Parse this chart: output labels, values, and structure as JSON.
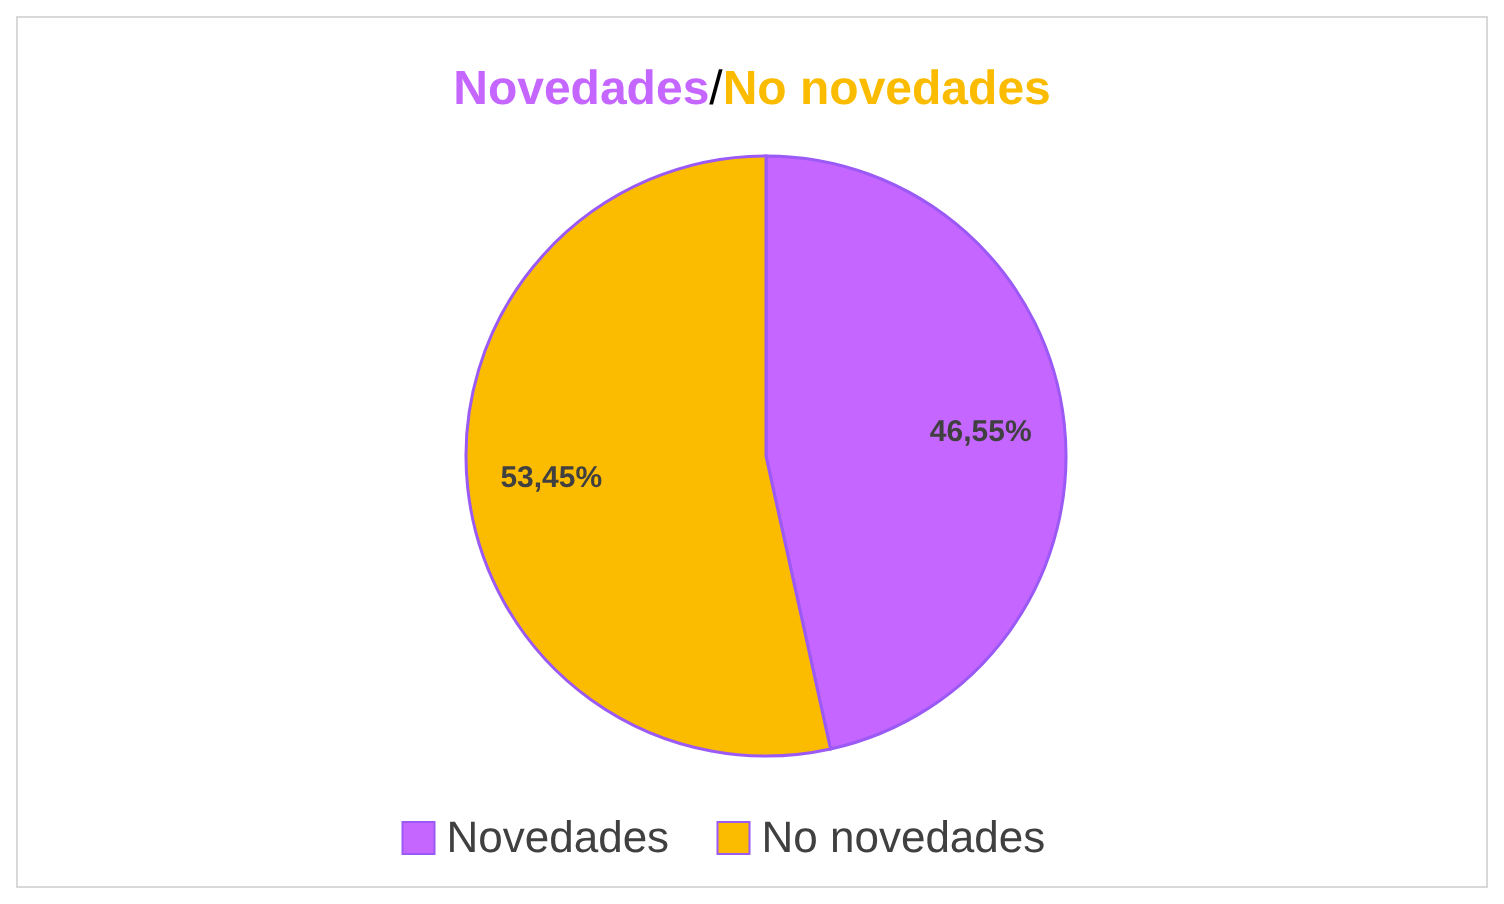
{
  "chart_data": {
    "type": "pie",
    "title": "Novedades/No novedades",
    "categories": [
      "Novedades",
      "No novedades"
    ],
    "values": [
      46.55,
      53.45
    ],
    "colors": [
      "#c466ff",
      "#fbbc00"
    ],
    "value_labels": [
      "46,55%",
      "53,45%"
    ],
    "legend": "bottom"
  }
}
